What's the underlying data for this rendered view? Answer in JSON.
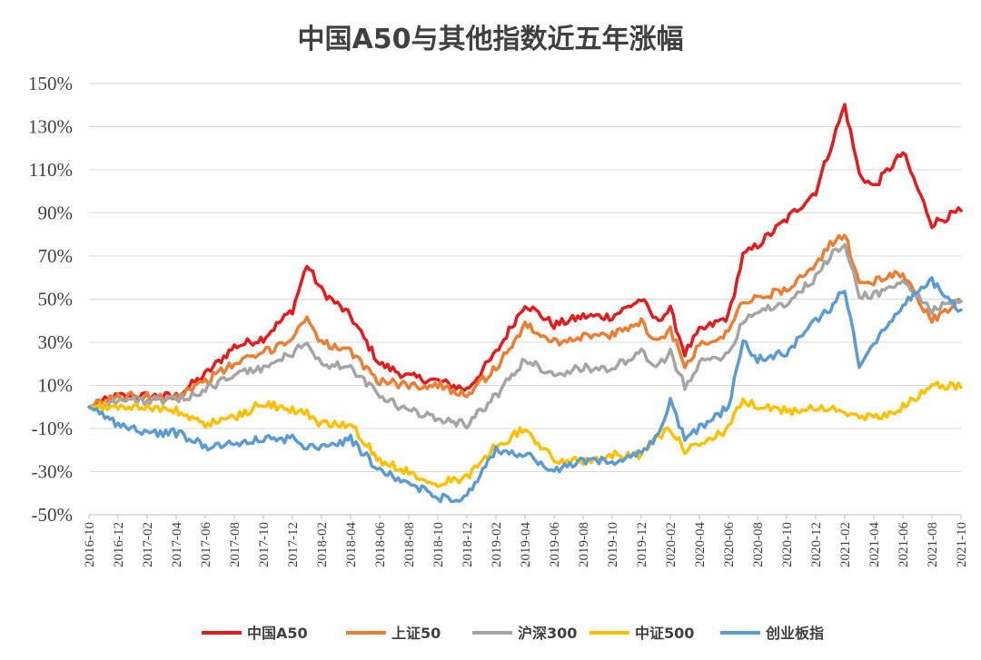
{
  "chart_data": {
    "type": "line",
    "title": "中国A50与其他指数近五年涨幅",
    "xlabel": "",
    "ylabel": "",
    "ylim": [
      -50,
      150
    ],
    "y_ticks": [
      150,
      130,
      110,
      90,
      70,
      50,
      30,
      10,
      -10,
      -30,
      -50
    ],
    "y_tick_labels": [
      "150%",
      "130%",
      "110%",
      "90%",
      "70%",
      "50%",
      "30%",
      "10%",
      "-10%",
      "-30%",
      "-50%"
    ],
    "x_tick_labels": [
      "2016-10",
      "2016-12",
      "2017-02",
      "2017-04",
      "2017-06",
      "2017-08",
      "2017-10",
      "2017-12",
      "2018-02",
      "2018-04",
      "2018-06",
      "2018-08",
      "2018-10",
      "2018-12",
      "2019-02",
      "2019-04",
      "2019-06",
      "2019-08",
      "2019-10",
      "2019-12",
      "2020-02",
      "2020-04",
      "2020-06",
      "2020-08",
      "2020-10",
      "2020-12",
      "2021-02",
      "2021-04",
      "2021-06",
      "2021-08",
      "2021-10"
    ],
    "legend_position": "bottom",
    "grid": "horizontal",
    "x": [
      "2016-10",
      "2016-12",
      "2017-02",
      "2017-04",
      "2017-06",
      "2017-08",
      "2017-10",
      "2017-12",
      "2018-01",
      "2018-02",
      "2018-04",
      "2018-06",
      "2018-08",
      "2018-10",
      "2018-12",
      "2019-02",
      "2019-04",
      "2019-06",
      "2019-08",
      "2019-10",
      "2019-12",
      "2020-01",
      "2020-02",
      "2020-03",
      "2020-04",
      "2020-06",
      "2020-07",
      "2020-08",
      "2020-10",
      "2020-12",
      "2021-01",
      "2021-02",
      "2021-03",
      "2021-04",
      "2021-06",
      "2021-08",
      "2021-10"
    ],
    "series": [
      {
        "name": "中国A50",
        "color": "#e8191a",
        "values": [
          0,
          5,
          5,
          5,
          15,
          28,
          32,
          45,
          66,
          54,
          42,
          20,
          14,
          12,
          8,
          25,
          48,
          38,
          42,
          42,
          50,
          40,
          45,
          25,
          35,
          42,
          70,
          75,
          87,
          100,
          120,
          140,
          108,
          102,
          118,
          85,
          91
        ]
      },
      {
        "name": "上证50",
        "color": "#ed7d31",
        "values": [
          0,
          5,
          5,
          5,
          12,
          20,
          25,
          32,
          42,
          30,
          25,
          12,
          10,
          10,
          6,
          18,
          38,
          30,
          33,
          33,
          40,
          30,
          36,
          20,
          28,
          35,
          50,
          50,
          55,
          65,
          75,
          80,
          58,
          58,
          62,
          40,
          49
        ]
      },
      {
        "name": "沪深300",
        "color": "#a5a5a5",
        "values": [
          0,
          3,
          3,
          3,
          8,
          15,
          18,
          25,
          30,
          20,
          18,
          5,
          -2,
          -5,
          -8,
          5,
          22,
          15,
          18,
          18,
          25,
          18,
          25,
          10,
          20,
          25,
          40,
          45,
          48,
          60,
          70,
          75,
          52,
          52,
          58,
          45,
          49
        ]
      },
      {
        "name": "中证500",
        "color": "#ffc000",
        "values": [
          0,
          0,
          0,
          -2,
          -8,
          -5,
          2,
          -2,
          -3,
          -8,
          -8,
          -25,
          -30,
          -35,
          -33,
          -18,
          -10,
          -25,
          -25,
          -22,
          -22,
          -15,
          -10,
          -20,
          -18,
          -10,
          3,
          0,
          -2,
          0,
          0,
          -3,
          -5,
          -5,
          0,
          10,
          9
        ]
      },
      {
        "name": "创业板指",
        "color": "#5b9bd5",
        "values": [
          0,
          -8,
          -12,
          -12,
          -18,
          -17,
          -15,
          -15,
          -18,
          -18,
          -15,
          -30,
          -35,
          -42,
          -42,
          -20,
          -22,
          -30,
          -25,
          -25,
          -22,
          -15,
          2,
          -15,
          -10,
          0,
          30,
          22,
          25,
          40,
          45,
          55,
          20,
          30,
          48,
          58,
          45
        ]
      }
    ]
  }
}
